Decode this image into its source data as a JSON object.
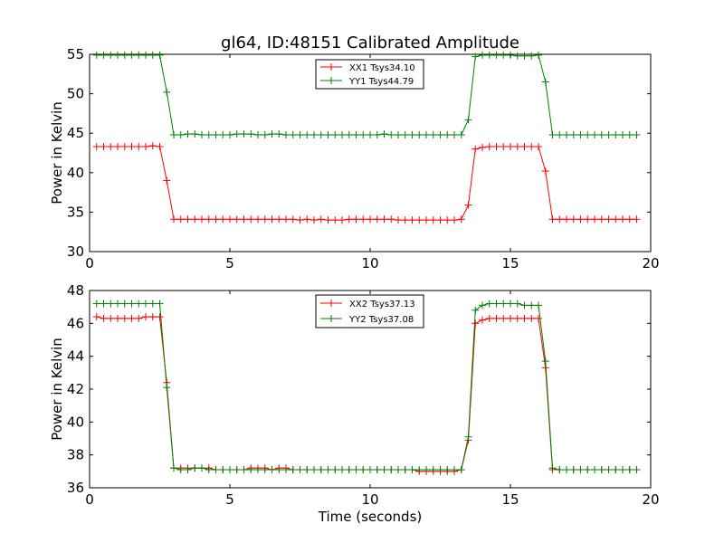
{
  "title": "gl64, ID:48151 Calibrated Amplitude",
  "xlabel": "Time (seconds)",
  "colors": {
    "xx": "#ff0000",
    "yy": "#008000",
    "axis": "#000000",
    "background": "#ffffff"
  },
  "chart_data": [
    {
      "type": "line",
      "title": "gl64, ID:48151 Calibrated Amplitude",
      "xlabel": "",
      "ylabel": "Power in Kelvin",
      "xlim": [
        0,
        20
      ],
      "ylim": [
        30,
        55
      ],
      "xticks": [
        0,
        5,
        10,
        15,
        20
      ],
      "yticks": [
        30,
        35,
        40,
        45,
        50,
        55
      ],
      "grid": false,
      "legend_position": "top-center",
      "x": [
        0.25,
        0.5,
        0.75,
        1.0,
        1.25,
        1.5,
        1.75,
        2.0,
        2.25,
        2.5,
        2.75,
        3.0,
        3.25,
        3.5,
        3.75,
        4.0,
        4.25,
        4.5,
        4.75,
        5.0,
        5.25,
        5.5,
        5.75,
        6.0,
        6.25,
        6.5,
        6.75,
        7.0,
        7.25,
        7.5,
        7.75,
        8.0,
        8.25,
        8.5,
        8.75,
        9.0,
        9.25,
        9.5,
        9.75,
        10.0,
        10.25,
        10.5,
        10.75,
        11.0,
        11.25,
        11.5,
        11.75,
        12.0,
        12.25,
        12.5,
        12.75,
        13.0,
        13.25,
        13.5,
        13.75,
        14.0,
        14.25,
        14.5,
        14.75,
        15.0,
        15.25,
        15.5,
        15.75,
        16.0,
        16.25,
        16.5,
        16.75,
        17.0,
        17.25,
        17.5,
        17.75,
        18.0,
        18.25,
        18.5,
        18.75,
        19.0,
        19.25,
        19.5
      ],
      "series": [
        {
          "name": "XX1 Tsys34.10",
          "color": "#ff0000",
          "values": [
            43.3,
            43.3,
            43.3,
            43.3,
            43.3,
            43.3,
            43.3,
            43.3,
            43.4,
            43.3,
            39.0,
            34.1,
            34.1,
            34.1,
            34.1,
            34.1,
            34.1,
            34.1,
            34.1,
            34.1,
            34.1,
            34.1,
            34.1,
            34.1,
            34.1,
            34.1,
            34.1,
            34.1,
            34.1,
            34.0,
            34.1,
            34.0,
            34.1,
            34.0,
            34.0,
            34.0,
            34.1,
            34.1,
            34.1,
            34.1,
            34.1,
            34.1,
            34.1,
            34.0,
            34.0,
            34.0,
            34.0,
            34.0,
            34.0,
            34.0,
            34.0,
            34.0,
            34.1,
            35.9,
            43.0,
            43.2,
            43.3,
            43.3,
            43.3,
            43.3,
            43.3,
            43.3,
            43.3,
            43.3,
            40.2,
            34.1,
            34.1,
            34.1,
            34.1,
            34.1,
            34.1,
            34.1,
            34.1,
            34.1,
            34.1,
            34.1,
            34.1,
            34.1
          ]
        },
        {
          "name": "YY1 Tsys44.79",
          "color": "#008000",
          "values": [
            54.9,
            54.9,
            54.9,
            54.9,
            54.9,
            54.9,
            54.9,
            54.9,
            54.9,
            54.9,
            50.2,
            44.8,
            44.8,
            44.9,
            44.9,
            44.8,
            44.8,
            44.8,
            44.8,
            44.8,
            44.9,
            44.9,
            44.9,
            44.8,
            44.8,
            44.9,
            44.9,
            44.8,
            44.8,
            44.8,
            44.8,
            44.8,
            44.8,
            44.8,
            44.8,
            44.8,
            44.8,
            44.8,
            44.8,
            44.8,
            44.8,
            44.9,
            44.8,
            44.8,
            44.8,
            44.8,
            44.8,
            44.8,
            44.8,
            44.8,
            44.8,
            44.8,
            44.8,
            46.7,
            54.7,
            54.9,
            54.9,
            54.9,
            54.9,
            54.9,
            54.8,
            54.8,
            54.8,
            54.9,
            51.5,
            44.8,
            44.8,
            44.8,
            44.8,
            44.8,
            44.8,
            44.8,
            44.8,
            44.8,
            44.8,
            44.8,
            44.8,
            44.8
          ]
        }
      ]
    },
    {
      "type": "line",
      "title": "",
      "xlabel": "Time (seconds)",
      "ylabel": "Power in Kelvin",
      "xlim": [
        0,
        20
      ],
      "ylim": [
        36,
        48
      ],
      "xticks": [
        0,
        5,
        10,
        15,
        20
      ],
      "yticks": [
        36,
        38,
        40,
        42,
        44,
        46,
        48
      ],
      "grid": false,
      "legend_position": "top-center",
      "x": [
        0.25,
        0.5,
        0.75,
        1.0,
        1.25,
        1.5,
        1.75,
        2.0,
        2.25,
        2.5,
        2.75,
        3.0,
        3.25,
        3.5,
        3.75,
        4.0,
        4.25,
        4.5,
        4.75,
        5.0,
        5.25,
        5.5,
        5.75,
        6.0,
        6.25,
        6.5,
        6.75,
        7.0,
        7.25,
        7.5,
        7.75,
        8.0,
        8.25,
        8.5,
        8.75,
        9.0,
        9.25,
        9.5,
        9.75,
        10.0,
        10.25,
        10.5,
        10.75,
        11.0,
        11.25,
        11.5,
        11.75,
        12.0,
        12.25,
        12.5,
        12.75,
        13.0,
        13.25,
        13.5,
        13.75,
        14.0,
        14.25,
        14.5,
        14.75,
        15.0,
        15.25,
        15.5,
        15.75,
        16.0,
        16.25,
        16.5,
        16.75,
        17.0,
        17.25,
        17.5,
        17.75,
        18.0,
        18.25,
        18.5,
        18.75,
        19.0,
        19.25,
        19.5
      ],
      "series": [
        {
          "name": "XX2 Tsys37.13",
          "color": "#ff0000",
          "values": [
            46.4,
            46.3,
            46.3,
            46.3,
            46.3,
            46.3,
            46.3,
            46.4,
            46.4,
            46.4,
            42.4,
            37.2,
            37.2,
            37.2,
            37.2,
            37.2,
            37.2,
            37.1,
            37.1,
            37.1,
            37.1,
            37.1,
            37.2,
            37.2,
            37.2,
            37.1,
            37.2,
            37.2,
            37.1,
            37.1,
            37.1,
            37.1,
            37.1,
            37.1,
            37.1,
            37.1,
            37.1,
            37.1,
            37.1,
            37.1,
            37.1,
            37.1,
            37.1,
            37.1,
            37.1,
            37.1,
            37.0,
            37.0,
            37.0,
            37.0,
            37.0,
            37.0,
            37.1,
            38.9,
            46.0,
            46.2,
            46.3,
            46.3,
            46.3,
            46.3,
            46.3,
            46.3,
            46.3,
            46.3,
            43.3,
            37.1,
            37.1,
            37.1,
            37.1,
            37.1,
            37.1,
            37.1,
            37.1,
            37.1,
            37.1,
            37.1,
            37.1,
            37.1
          ]
        },
        {
          "name": "YY2 Tsys37.08",
          "color": "#008000",
          "values": [
            47.2,
            47.2,
            47.2,
            47.2,
            47.2,
            47.2,
            47.2,
            47.2,
            47.2,
            47.2,
            42.1,
            37.2,
            37.1,
            37.1,
            37.2,
            37.2,
            37.1,
            37.1,
            37.1,
            37.1,
            37.1,
            37.1,
            37.1,
            37.1,
            37.1,
            37.1,
            37.1,
            37.1,
            37.1,
            37.1,
            37.1,
            37.1,
            37.1,
            37.1,
            37.1,
            37.1,
            37.1,
            37.1,
            37.1,
            37.1,
            37.1,
            37.1,
            37.1,
            37.1,
            37.1,
            37.1,
            37.1,
            37.1,
            37.1,
            37.1,
            37.1,
            37.1,
            37.1,
            39.1,
            46.8,
            47.1,
            47.2,
            47.2,
            47.2,
            47.2,
            47.2,
            47.1,
            47.1,
            47.1,
            43.7,
            37.2,
            37.1,
            37.1,
            37.1,
            37.1,
            37.1,
            37.1,
            37.1,
            37.1,
            37.1,
            37.1,
            37.1,
            37.1
          ]
        }
      ]
    }
  ]
}
